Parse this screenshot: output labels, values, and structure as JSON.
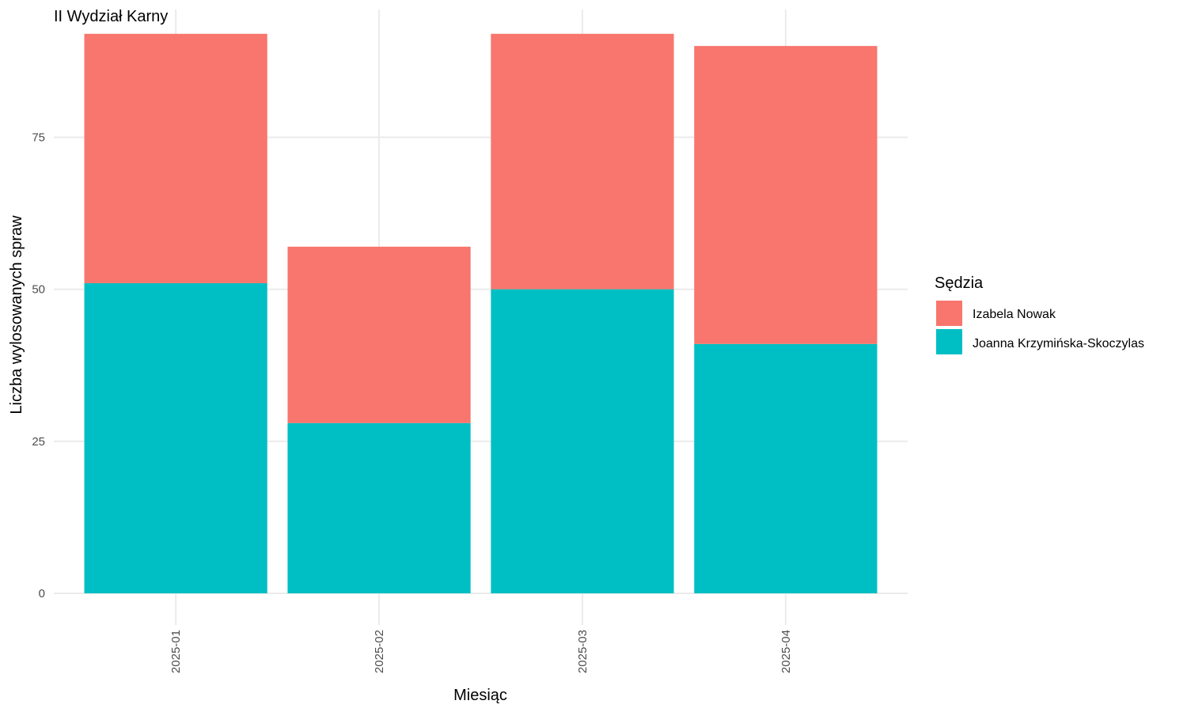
{
  "chart_data": {
    "type": "bar",
    "stacked": true,
    "title": "II Wydział Karny",
    "xlabel": "Miesiąc",
    "ylabel": "Liczba wylosowanych spraw",
    "categories": [
      "2025-01",
      "2025-02",
      "2025-03",
      "2025-04"
    ],
    "series": [
      {
        "name": "Joanna Krzymińska-Skoczylas",
        "values": [
          51,
          28,
          50,
          41
        ],
        "color": "#00BFC4"
      },
      {
        "name": "Izabela Nowak",
        "values": [
          41,
          29,
          42,
          49
        ],
        "color": "#F8766D"
      }
    ],
    "ylim": [
      0,
      96
    ],
    "yticks": [
      0,
      25,
      50,
      75
    ],
    "ytick_labels": [
      "0",
      "25",
      "50",
      "75"
    ],
    "grid": true,
    "legend": {
      "title": "Sędzia",
      "position": "right",
      "entries": [
        "Izabela Nowak",
        "Joanna Krzymińska-Skoczylas"
      ],
      "colors": [
        "#F8766D",
        "#00BFC4"
      ]
    }
  }
}
